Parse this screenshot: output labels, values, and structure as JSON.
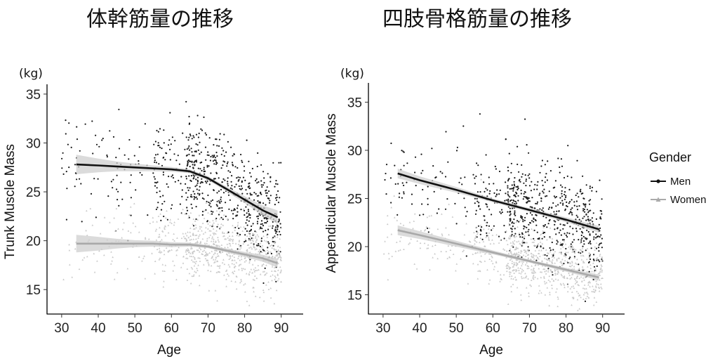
{
  "panels": [
    {
      "title": "体幹筋量の推移",
      "unit": "(kg)",
      "xlabel": "Age",
      "ylabel": "Trunk Muscle Mass"
    },
    {
      "title": "四肢骨格筋量の推移",
      "unit": "(kg)",
      "xlabel": "Age",
      "ylabel": "Appendicular Muscle Mass"
    }
  ],
  "legend": {
    "title": "Gender",
    "items": [
      {
        "label": "Men",
        "color": "#111111"
      },
      {
        "label": "Women",
        "color": "#aaaaaa"
      }
    ]
  },
  "colors": {
    "men": "#111111",
    "women": "#a9a9a9",
    "men_points": "#1a1a1a",
    "women_points": "#c8c8c8",
    "band": "#cfcfcf"
  },
  "chart_data": [
    {
      "type": "scatter",
      "title": "体幹筋量の推移",
      "xlabel": "Age",
      "ylabel": "Trunk Muscle Mass",
      "xlim": [
        26,
        96
      ],
      "ylim": [
        12.5,
        36
      ],
      "xticks": [
        30,
        40,
        50,
        60,
        70,
        80,
        90
      ],
      "yticks": [
        15,
        20,
        25,
        30,
        35
      ],
      "grid": false,
      "legend": "right",
      "series": [
        {
          "name": "Men",
          "fit_x": [
            34,
            40,
            45,
            50,
            55,
            60,
            65,
            70,
            75,
            80,
            85,
            89
          ],
          "fit_y": [
            27.8,
            27.7,
            27.6,
            27.5,
            27.4,
            27.3,
            27.1,
            26.4,
            25.3,
            24.2,
            23.1,
            22.4
          ],
          "band": [
            1.0,
            0.7,
            0.5,
            0.4,
            0.3,
            0.25,
            0.2,
            0.2,
            0.25,
            0.35,
            0.5,
            0.7
          ]
        },
        {
          "name": "Women",
          "fit_x": [
            34,
            40,
            45,
            50,
            55,
            60,
            65,
            70,
            75,
            80,
            85,
            89
          ],
          "fit_y": [
            19.7,
            19.7,
            19.7,
            19.7,
            19.7,
            19.6,
            19.6,
            19.4,
            19.0,
            18.6,
            18.2,
            17.7
          ],
          "band": [
            0.9,
            0.7,
            0.5,
            0.35,
            0.3,
            0.25,
            0.2,
            0.15,
            0.2,
            0.25,
            0.35,
            0.45
          ]
        }
      ]
    },
    {
      "type": "scatter",
      "title": "四肢骨格筋量の推移",
      "xlabel": "Age",
      "ylabel": "Appendicular Muscle Mass",
      "xlim": [
        26,
        96
      ],
      "ylim": [
        13,
        37
      ],
      "xticks": [
        30,
        40,
        50,
        60,
        70,
        80,
        90
      ],
      "yticks": [
        15,
        20,
        25,
        30,
        35
      ],
      "grid": false,
      "legend": "right",
      "series": [
        {
          "name": "Men",
          "fit_x": [
            34,
            40,
            50,
            60,
            70,
            80,
            89
          ],
          "fit_y": [
            27.6,
            26.9,
            25.9,
            24.8,
            23.8,
            22.8,
            21.8
          ],
          "band": [
            0.5,
            0.4,
            0.3,
            0.2,
            0.2,
            0.25,
            0.35
          ]
        },
        {
          "name": "Women",
          "fit_x": [
            34,
            40,
            50,
            60,
            70,
            80,
            89
          ],
          "fit_y": [
            21.7,
            21.2,
            20.3,
            19.4,
            18.5,
            17.6,
            16.8
          ],
          "band": [
            0.5,
            0.4,
            0.3,
            0.2,
            0.15,
            0.2,
            0.3
          ]
        }
      ]
    }
  ]
}
